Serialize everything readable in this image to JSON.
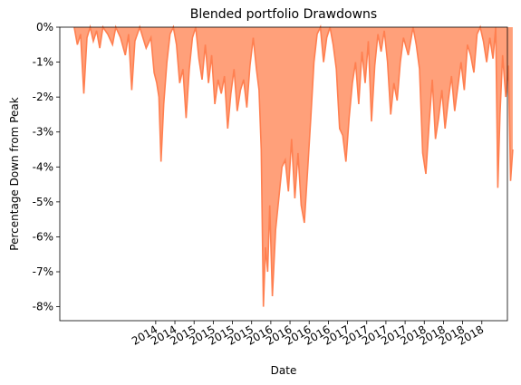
{
  "chart_data": {
    "type": "area",
    "title": "Blended portfolio Drawdowns",
    "xlabel": "Date",
    "ylabel": "Percentage Down from Peak",
    "ylim": [
      -8.4,
      0.0
    ],
    "y_ticks": [
      {
        "value": 0,
        "label": "0%"
      },
      {
        "value": -1,
        "label": "-1%"
      },
      {
        "value": -2,
        "label": "-2%"
      },
      {
        "value": -3,
        "label": "-3%"
      },
      {
        "value": -4,
        "label": "-4%"
      },
      {
        "value": -5,
        "label": "-5%"
      },
      {
        "value": -6,
        "label": "-6%"
      },
      {
        "value": -7,
        "label": "-7%"
      },
      {
        "value": -8,
        "label": "-8%"
      }
    ],
    "x_ticks": [
      {
        "value": "2014-01",
        "label": "2014"
      },
      {
        "value": "2014-04",
        "label": "2014"
      },
      {
        "value": "2014-07",
        "label": "2015"
      },
      {
        "value": "2014-10",
        "label": "2015"
      },
      {
        "value": "2015-01",
        "label": "2015"
      },
      {
        "value": "2015-04",
        "label": "2015"
      },
      {
        "value": "2015-07",
        "label": "2016"
      },
      {
        "value": "2015-10",
        "label": "2016"
      },
      {
        "value": "2016-01",
        "label": "2016"
      },
      {
        "value": "2016-04",
        "label": "2016"
      },
      {
        "value": "2016-07",
        "label": "2017"
      },
      {
        "value": "2016-10",
        "label": "2017"
      },
      {
        "value": "2017-01",
        "label": "2017"
      },
      {
        "value": "2017-04",
        "label": "2017"
      },
      {
        "value": "2017-07",
        "label": "2018"
      },
      {
        "value": "2017-10",
        "label": "2018"
      },
      {
        "value": "2018-01",
        "label": "2018"
      },
      {
        "value": "2018-04",
        "label": "2018"
      }
    ],
    "xlim": [
      "2012-10",
      "2018-08"
    ],
    "series": [
      {
        "color": "#ff7f50",
        "fill_color": "#ffa07a",
        "points": [
          [
            "2012-12",
            0
          ],
          [
            "2012-12",
            -0.5
          ],
          [
            "2013-01",
            -0.2
          ],
          [
            "2013-01",
            -1.9
          ],
          [
            "2013-02",
            -0.3
          ],
          [
            "2013-02",
            0
          ],
          [
            "2013-03",
            -0.4
          ],
          [
            "2013-03",
            -0.1
          ],
          [
            "2013-04",
            -0.6
          ],
          [
            "2013-04",
            0
          ],
          [
            "2013-05",
            -0.2
          ],
          [
            "2013-06",
            -0.5
          ],
          [
            "2013-06",
            0
          ],
          [
            "2013-07",
            -0.3
          ],
          [
            "2013-08",
            -0.8
          ],
          [
            "2013-08",
            -0.2
          ],
          [
            "2013-09",
            -1.8
          ],
          [
            "2013-09",
            -0.4
          ],
          [
            "2013-10",
            0
          ],
          [
            "2013-11",
            -0.6
          ],
          [
            "2013-12",
            -0.3
          ],
          [
            "2013-12",
            -1.3
          ],
          [
            "2014-01",
            -1.6
          ],
          [
            "2014-01",
            -2.0
          ],
          [
            "2014-01",
            -3.85
          ],
          [
            "2014-02",
            -2.2
          ],
          [
            "2014-02",
            -1.0
          ],
          [
            "2014-03",
            -0.2
          ],
          [
            "2014-03",
            0
          ],
          [
            "2014-04",
            -0.5
          ],
          [
            "2014-04",
            -1.6
          ],
          [
            "2014-05",
            -1.2
          ],
          [
            "2014-05",
            -2.6
          ],
          [
            "2014-06",
            -1.2
          ],
          [
            "2014-06",
            -0.3
          ],
          [
            "2014-07",
            0
          ],
          [
            "2014-07",
            -0.9
          ],
          [
            "2014-08",
            -1.5
          ],
          [
            "2014-08",
            -0.5
          ],
          [
            "2014-09",
            -1.6
          ],
          [
            "2014-09",
            -0.8
          ],
          [
            "2014-10",
            -2.2
          ],
          [
            "2014-10",
            -1.5
          ],
          [
            "2014-11",
            -1.9
          ],
          [
            "2014-11",
            -1.4
          ],
          [
            "2014-12",
            -2.9
          ],
          [
            "2014-12",
            -1.9
          ],
          [
            "2015-01",
            -1.2
          ],
          [
            "2015-01",
            -2.4
          ],
          [
            "2015-02",
            -1.8
          ],
          [
            "2015-02",
            -1.5
          ],
          [
            "2015-03",
            -2.3
          ],
          [
            "2015-03",
            -1.1
          ],
          [
            "2015-04",
            -0.3
          ],
          [
            "2015-04",
            -1.2
          ],
          [
            "2015-05",
            -1.8
          ],
          [
            "2015-05",
            -3.5
          ],
          [
            "2015-05",
            -8.0
          ],
          [
            "2015-06",
            -6.3
          ],
          [
            "2015-06",
            -7.0
          ],
          [
            "2015-06",
            -5.1
          ],
          [
            "2015-07",
            -7.7
          ],
          [
            "2015-07",
            -5.8
          ],
          [
            "2015-08",
            -4.9
          ],
          [
            "2015-08",
            -4.0
          ],
          [
            "2015-09",
            -3.8
          ],
          [
            "2015-09",
            -4.7
          ],
          [
            "2015-10",
            -3.2
          ],
          [
            "2015-10",
            -4.9
          ],
          [
            "2015-11",
            -3.6
          ],
          [
            "2015-11",
            -5.1
          ],
          [
            "2015-12",
            -5.6
          ],
          [
            "2015-12",
            -4.1
          ],
          [
            "2016-01",
            -2.6
          ],
          [
            "2016-01",
            -1.0
          ],
          [
            "2016-02",
            -0.2
          ],
          [
            "2016-02",
            0
          ],
          [
            "2016-03",
            -1.0
          ],
          [
            "2016-03",
            -0.3
          ],
          [
            "2016-04",
            0
          ],
          [
            "2016-04",
            -0.5
          ],
          [
            "2016-05",
            -1.2
          ],
          [
            "2016-05",
            -2.9
          ],
          [
            "2016-06",
            -3.1
          ],
          [
            "2016-06",
            -3.85
          ],
          [
            "2016-07",
            -2.6
          ],
          [
            "2016-07",
            -1.6
          ],
          [
            "2016-08",
            -1.0
          ],
          [
            "2016-08",
            -2.2
          ],
          [
            "2016-09",
            -0.7
          ],
          [
            "2016-09",
            -1.6
          ],
          [
            "2016-10",
            -0.4
          ],
          [
            "2016-10",
            -2.7
          ],
          [
            "2016-11",
            -1.1
          ],
          [
            "2016-11",
            -0.2
          ],
          [
            "2016-12",
            -0.7
          ],
          [
            "2016-12",
            -0.1
          ],
          [
            "2017-01",
            -1.0
          ],
          [
            "2017-01",
            -2.5
          ],
          [
            "2017-02",
            -1.6
          ],
          [
            "2017-02",
            -2.1
          ],
          [
            "2017-03",
            -1.0
          ],
          [
            "2017-03",
            -0.3
          ],
          [
            "2017-04",
            -0.8
          ],
          [
            "2017-05",
            0
          ],
          [
            "2017-05",
            -0.5
          ],
          [
            "2017-06",
            -1.2
          ],
          [
            "2017-06",
            -3.6
          ],
          [
            "2017-07",
            -4.2
          ],
          [
            "2017-07",
            -2.8
          ],
          [
            "2017-08",
            -1.5
          ],
          [
            "2017-08",
            -3.2
          ],
          [
            "2017-09",
            -2.6
          ],
          [
            "2017-09",
            -1.8
          ],
          [
            "2017-10",
            -2.9
          ],
          [
            "2017-10",
            -2.1
          ],
          [
            "2017-11",
            -1.4
          ],
          [
            "2017-11",
            -2.4
          ],
          [
            "2017-12",
            -1.7
          ],
          [
            "2017-12",
            -1.0
          ],
          [
            "2018-01",
            -1.8
          ],
          [
            "2018-01",
            -0.5
          ],
          [
            "2018-02",
            -0.8
          ],
          [
            "2018-02",
            -1.3
          ],
          [
            "2018-03",
            -0.2
          ],
          [
            "2018-03",
            0
          ],
          [
            "2018-04",
            -0.4
          ],
          [
            "2018-04",
            -1.0
          ],
          [
            "2018-05",
            -0.3
          ],
          [
            "2018-05",
            -0.9
          ],
          [
            "2018-06",
            0
          ],
          [
            "2018-06",
            -4.6
          ],
          [
            "2018-06",
            -2.5
          ],
          [
            "2018-07",
            -0.8
          ],
          [
            "2018-07",
            -2.0
          ],
          [
            "2018-08",
            -1.1
          ],
          [
            "2018-08",
            -4.4
          ],
          [
            "2018-08",
            -3.5
          ]
        ]
      }
    ]
  }
}
